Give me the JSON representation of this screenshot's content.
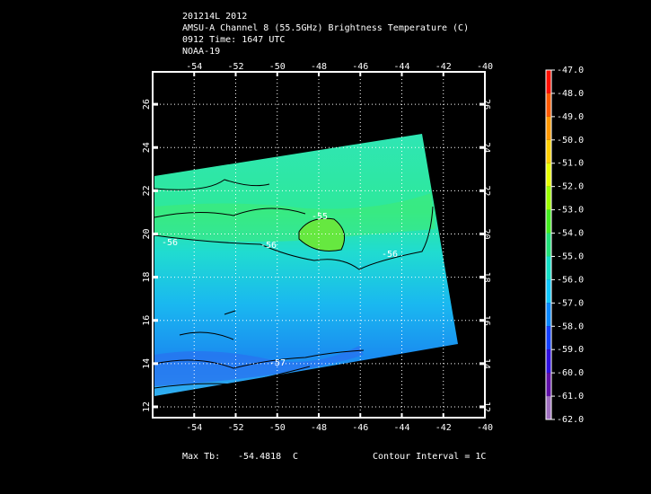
{
  "header": {
    "lines": [
      "201214L 2012",
      "AMSU-A Channel 8 (55.5GHz) Brightness Temperature (C)",
      "0912 Time: 1647 UTC",
      "NOAA-19"
    ]
  },
  "map": {
    "xlim": [
      -56,
      -40
    ],
    "ylim": [
      11.5,
      27.5
    ],
    "xticks": [
      -54,
      -52,
      -50,
      -48,
      -46,
      -44,
      -42,
      -40
    ],
    "yticks": [
      12,
      14,
      16,
      18,
      20,
      22,
      24,
      26
    ],
    "grid": true,
    "contour_labels": [
      "-55",
      "-56",
      "-56",
      "-56",
      "-57"
    ]
  },
  "colorbar": {
    "ticks": [
      {
        "value": -47,
        "label": "-47.0"
      },
      {
        "value": -48,
        "label": "-48.0"
      },
      {
        "value": -49,
        "label": "-49.0"
      },
      {
        "value": -50,
        "label": "-50.0"
      },
      {
        "value": -51,
        "label": "-51.0"
      },
      {
        "value": -52,
        "label": "-52.0"
      },
      {
        "value": -53,
        "label": "-53.0"
      },
      {
        "value": -54,
        "label": "-54.0"
      },
      {
        "value": -55,
        "label": "-55.0"
      },
      {
        "value": -56,
        "label": "-56.0"
      },
      {
        "value": -57,
        "label": "-57.0"
      },
      {
        "value": -58,
        "label": "-58.0"
      },
      {
        "value": -59,
        "label": "-59.0"
      },
      {
        "value": -60,
        "label": "-60.0"
      },
      {
        "value": -61,
        "label": "-61.0"
      },
      {
        "value": -62,
        "label": "-62.0"
      }
    ],
    "colors": [
      "#ff1000",
      "#ff5a00",
      "#ff9800",
      "#ffd000",
      "#e8ff00",
      "#9cff00",
      "#44ee22",
      "#22e27a",
      "#14e0c8",
      "#10c8ff",
      "#0a88ff",
      "#1440ff",
      "#3010e0",
      "#6010a8",
      "#a070c0"
    ]
  },
  "footer": {
    "max_label": "Max Tb:",
    "max_value": -54.4818,
    "max_unit": "C",
    "contour_interval": "Contour Interval = 1C"
  }
}
